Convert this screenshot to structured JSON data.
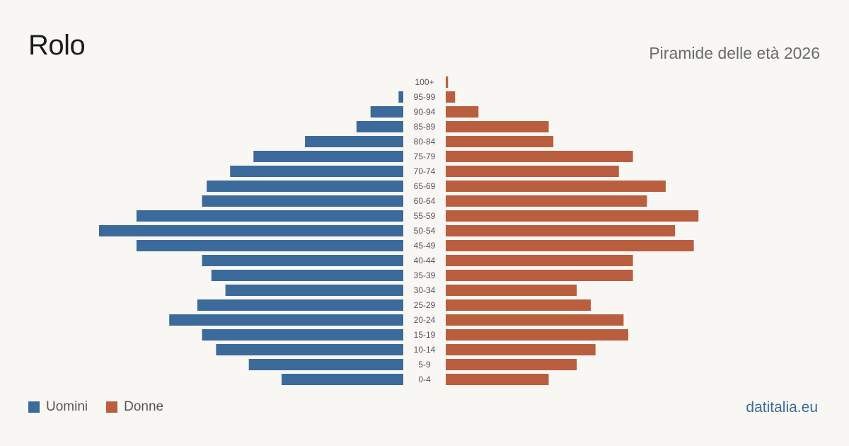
{
  "header": {
    "title": "Rolo",
    "subtitle": "Piramide delle età 2026"
  },
  "legend": {
    "men_label": "Uomini",
    "women_label": "Donne"
  },
  "footer": {
    "source": "datitalia.eu"
  },
  "colors": {
    "men": "#3b6a9b",
    "women": "#b95e3e"
  },
  "chart_data": {
    "type": "bar",
    "orientation": "horizontal",
    "layout": "population-pyramid",
    "categories": [
      "100+",
      "95-99",
      "90-94",
      "85-89",
      "80-84",
      "75-79",
      "70-74",
      "65-69",
      "60-64",
      "55-59",
      "50-54",
      "45-49",
      "40-44",
      "35-39",
      "30-34",
      "25-29",
      "20-24",
      "15-19",
      "10-14",
      "5-9",
      "0-4"
    ],
    "series": [
      {
        "name": "Uomini",
        "values": [
          0,
          1,
          7,
          10,
          21,
          32,
          37,
          42,
          43,
          57,
          65,
          57,
          43,
          41,
          38,
          44,
          50,
          43,
          40,
          33,
          26
        ]
      },
      {
        "name": "Donne",
        "values": [
          0.5,
          2,
          7,
          22,
          23,
          40,
          37,
          47,
          43,
          54,
          49,
          53,
          40,
          40,
          28,
          31,
          38,
          39,
          32,
          28,
          22
        ]
      }
    ],
    "xlim": [
      0,
      65
    ],
    "legend_position": "bottom-left",
    "grid": false
  }
}
